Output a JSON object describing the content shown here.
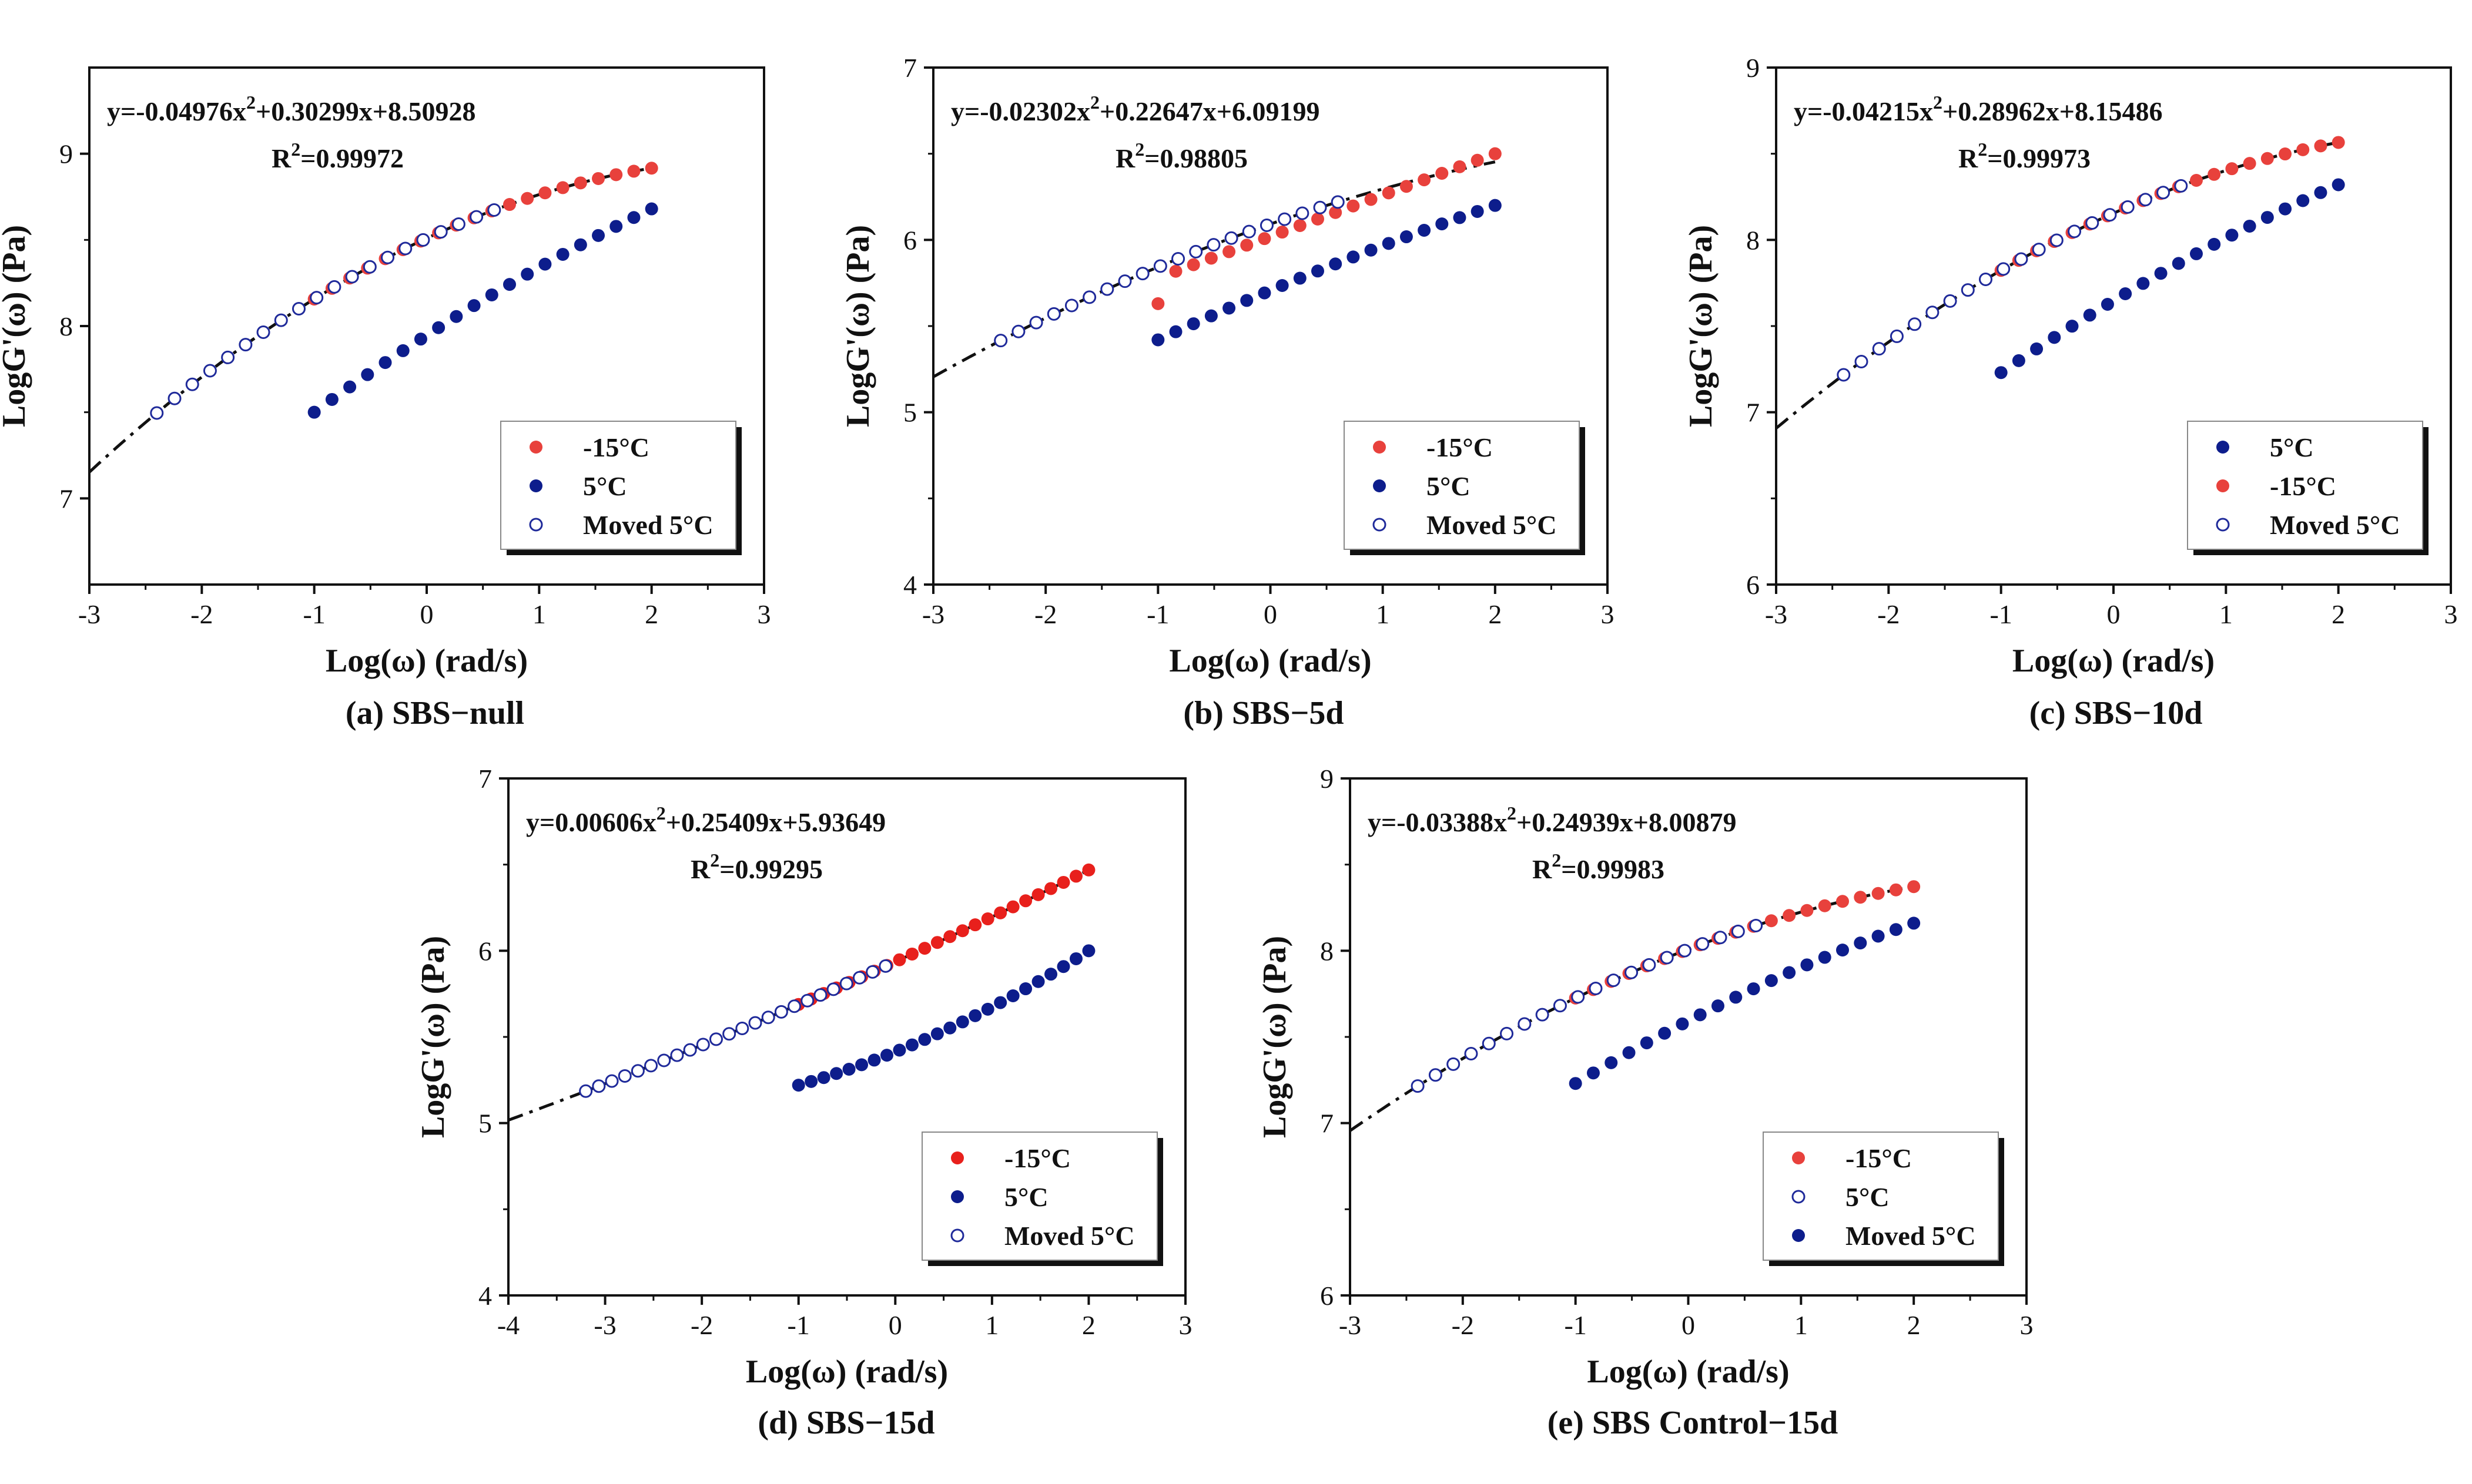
{
  "chart_data": [
    {
      "type": "scatter",
      "caption": "(a) SBS−null",
      "xlabel": "Log(ω) (rad/s)",
      "ylabel": "LogG'(ω) (Pa)",
      "xlim": [
        -3,
        3
      ],
      "ylim": [
        6.5,
        9.5
      ],
      "xticks": [
        -3,
        -2,
        -1,
        0,
        1,
        2,
        3
      ],
      "yticks": [
        7,
        8,
        9
      ],
      "grid": false,
      "legend_position": "bottom-right",
      "fit": {
        "equation_main": "y=-0.04976x",
        "equation_exp": "2",
        "equation_rest": "+0.30299x+8.50928",
        "r2_main": "R",
        "r2_exp": "2",
        "r2_rest": "=0.99972",
        "coefficients": [
          -0.04976,
          0.30299,
          8.50928
        ],
        "x_range": [
          -3,
          2
        ]
      },
      "series": [
        {
          "name": "-15°C",
          "color": "#e8413c",
          "filled": true,
          "x_range": [
            -1,
            2
          ],
          "count": 20,
          "y_formula": "fit"
        },
        {
          "name": "5°C",
          "color": "#0d1d8c",
          "filled": true,
          "x_range": [
            -1,
            2
          ],
          "count": 20,
          "y_start": 7.5,
          "y_end": 8.68,
          "curvature": -0.04
        },
        {
          "name": "Moved 5°C",
          "color": "#1f2a9a",
          "filled": false,
          "x_range": [
            -2.4,
            0.6
          ],
          "count": 20,
          "y_formula": "fit"
        }
      ]
    },
    {
      "type": "scatter",
      "caption": "(b) SBS−5d",
      "xlabel": "Log(ω) (rad/s)",
      "ylabel": "LogG'(ω) (Pa)",
      "xlim": [
        -3,
        3
      ],
      "ylim": [
        4,
        7
      ],
      "xticks": [
        -3,
        -2,
        -1,
        0,
        1,
        2,
        3
      ],
      "yticks": [
        4,
        5,
        6,
        7
      ],
      "grid": false,
      "legend_position": "bottom-right",
      "fit": {
        "equation_main": "y=-0.02302x",
        "equation_exp": "2",
        "equation_rest": "+0.22647x+6.09199",
        "r2_main": "R",
        "r2_exp": "2",
        "r2_rest": "=0.98805",
        "coefficients": [
          -0.02302,
          0.22647,
          6.09199
        ],
        "x_range": [
          -3,
          2
        ]
      },
      "series": [
        {
          "name": "-15°C",
          "color": "#e8413c",
          "filled": true,
          "x_range": [
            -1,
            2
          ],
          "count": 20,
          "y_start": 5.78,
          "y_end": 6.5,
          "curvature": 0,
          "first_point_offset": -0.15
        },
        {
          "name": "5°C",
          "color": "#0d1d8c",
          "filled": true,
          "x_range": [
            -1,
            2
          ],
          "count": 20,
          "y_start": 5.42,
          "y_end": 6.2,
          "curvature": -0.02
        },
        {
          "name": "Moved 5°C",
          "color": "#1f2a9a",
          "filled": false,
          "x_range": [
            -2.4,
            0.6
          ],
          "count": 20,
          "y_formula": "fit"
        }
      ]
    },
    {
      "type": "scatter",
      "caption": "(c) SBS−10d",
      "xlabel": "Log(ω) (rad/s)",
      "ylabel": "LogG'(ω) (Pa)",
      "xlim": [
        -3,
        3
      ],
      "ylim": [
        6,
        9
      ],
      "xticks": [
        -3,
        -2,
        -1,
        0,
        1,
        2,
        3
      ],
      "yticks": [
        6,
        7,
        8,
        9
      ],
      "grid": false,
      "legend_position": "bottom-right",
      "fit": {
        "equation_main": "y=-0.04215x",
        "equation_exp": "2",
        "equation_rest": "+0.28962x+8.15486",
        "r2_main": "R",
        "r2_exp": "2",
        "r2_rest": "=0.99973",
        "coefficients": [
          -0.04215,
          0.28962,
          8.15486
        ],
        "x_range": [
          -3,
          2
        ]
      },
      "series": [
        {
          "name": "5°C",
          "color": "#0d1d8c",
          "filled": true,
          "x_range": [
            -1,
            2
          ],
          "count": 20,
          "y_start": 7.23,
          "y_end": 8.32,
          "curvature": -0.04
        },
        {
          "name": "-15°C",
          "color": "#e8413c",
          "filled": true,
          "x_range": [
            -1,
            2
          ],
          "count": 20,
          "y_formula": "fit"
        },
        {
          "name": "Moved 5°C",
          "color": "#1f2a9a",
          "filled": false,
          "x_range": [
            -2.4,
            0.6
          ],
          "count": 20,
          "y_formula": "fit"
        }
      ]
    },
    {
      "type": "scatter",
      "caption": "(d) SBS−15d",
      "xlabel": "Log(ω) (rad/s)",
      "ylabel": "LogG'(ω) (Pa)",
      "xlim": [
        -4,
        3
      ],
      "ylim": [
        4,
        7
      ],
      "xticks": [
        -4,
        -3,
        -2,
        -1,
        0,
        1,
        2,
        3
      ],
      "yticks": [
        4,
        5,
        6,
        7
      ],
      "grid": false,
      "legend_position": "bottom-right",
      "fit": {
        "equation_main": "y=0.00606x",
        "equation_exp": "2",
        "equation_rest": "+0.25409x+5.93649",
        "r2_main": "R",
        "r2_exp": "2",
        "r2_rest": "=0.99295",
        "coefficients": [
          0.00606,
          0.25409,
          5.93649
        ],
        "x_range": [
          -4,
          2
        ]
      },
      "series": [
        {
          "name": "-15°C",
          "color": "#e8201c",
          "filled": true,
          "x_range": [
            -1,
            2
          ],
          "count": 24,
          "y_formula": "fit"
        },
        {
          "name": "5°C",
          "color": "#0d1d8c",
          "filled": true,
          "x_range": [
            -1,
            2
          ],
          "count": 24,
          "y_start": 5.22,
          "y_end": 6.0,
          "curvature": 0.05
        },
        {
          "name": "Moved 5°C",
          "color": "#1f2a9a",
          "filled": false,
          "x_range": [
            -3.2,
            -0.1
          ],
          "count": 24,
          "y_formula": "fit"
        }
      ]
    },
    {
      "type": "scatter",
      "caption": "(e) SBS Control−15d",
      "xlabel": "Log(ω) (rad/s)",
      "ylabel": "LogG'(ω) (Pa)",
      "xlim": [
        -3,
        3
      ],
      "ylim": [
        6,
        9
      ],
      "xticks": [
        -3,
        -2,
        -1,
        0,
        1,
        2,
        3
      ],
      "yticks": [
        6,
        7,
        8,
        9
      ],
      "grid": false,
      "legend_position": "bottom-right",
      "fit": {
        "equation_main": "y=-0.03388x",
        "equation_exp": "2",
        "equation_rest": "+0.24939x+8.00879",
        "r2_main": "R",
        "r2_exp": "2",
        "r2_rest": "=0.99983",
        "coefficients": [
          -0.03388,
          0.24939,
          8.00879
        ],
        "x_range": [
          -3,
          2
        ]
      },
      "series": [
        {
          "name": "-15°C",
          "color": "#e8413c",
          "filled": true,
          "x_range": [
            -1,
            2
          ],
          "count": 20,
          "y_formula": "fit"
        },
        {
          "name": "5°C",
          "color": "#1f2a9a",
          "filled": false,
          "x_range": [
            -2.4,
            0.6
          ],
          "count": 20,
          "y_formula": "fit"
        },
        {
          "name": "Moved 5°C",
          "color": "#0d1d8c",
          "filled": true,
          "x_range": [
            -1,
            2
          ],
          "count": 20,
          "y_start": 7.23,
          "y_end": 8.16,
          "curvature": -0.04
        }
      ]
    }
  ]
}
